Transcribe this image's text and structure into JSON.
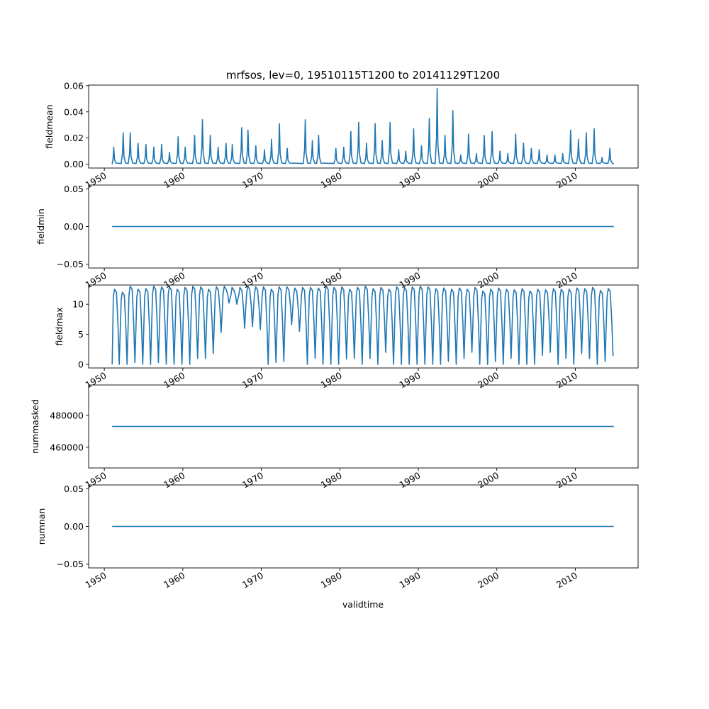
{
  "chart_data": {
    "title": "mrfsos, lev=0, 19510115T1200 to 20141129T1200",
    "xlabel": "validtime",
    "x_ticks": [
      "1950",
      "1960",
      "1970",
      "1980",
      "1990",
      "2000",
      "2010"
    ],
    "x_range": [
      1948.0,
      2018.0
    ],
    "series_color": "#1f77b4",
    "panels": [
      {
        "type": "line",
        "ylabel": "fieldmean",
        "ylim": [
          -0.003,
          0.0605
        ],
        "y_ticks": [
          "0.00",
          "0.02",
          "0.04",
          "0.06"
        ],
        "y_tick_values": [
          0.0,
          0.02,
          0.04,
          0.06
        ],
        "peaks": [
          {
            "x": 1951.2,
            "y": 0.013
          },
          {
            "x": 1952.4,
            "y": 0.024
          },
          {
            "x": 1953.3,
            "y": 0.024
          },
          {
            "x": 1954.3,
            "y": 0.016
          },
          {
            "x": 1955.3,
            "y": 0.015
          },
          {
            "x": 1956.3,
            "y": 0.013
          },
          {
            "x": 1957.3,
            "y": 0.015
          },
          {
            "x": 1958.3,
            "y": 0.009
          },
          {
            "x": 1959.4,
            "y": 0.021
          },
          {
            "x": 1960.3,
            "y": 0.013
          },
          {
            "x": 1961.5,
            "y": 0.022
          },
          {
            "x": 1962.5,
            "y": 0.034
          },
          {
            "x": 1963.5,
            "y": 0.022
          },
          {
            "x": 1964.5,
            "y": 0.013
          },
          {
            "x": 1965.5,
            "y": 0.016
          },
          {
            "x": 1966.3,
            "y": 0.015
          },
          {
            "x": 1967.5,
            "y": 0.028
          },
          {
            "x": 1968.3,
            "y": 0.026
          },
          {
            "x": 1969.3,
            "y": 0.014
          },
          {
            "x": 1970.4,
            "y": 0.011
          },
          {
            "x": 1971.3,
            "y": 0.019
          },
          {
            "x": 1972.3,
            "y": 0.031
          },
          {
            "x": 1973.3,
            "y": 0.012
          },
          {
            "x": 1975.6,
            "y": 0.034
          },
          {
            "x": 1976.5,
            "y": 0.018
          },
          {
            "x": 1977.3,
            "y": 0.022
          },
          {
            "x": 1979.5,
            "y": 0.012
          },
          {
            "x": 1980.5,
            "y": 0.013
          },
          {
            "x": 1981.4,
            "y": 0.025
          },
          {
            "x": 1982.4,
            "y": 0.032
          },
          {
            "x": 1983.4,
            "y": 0.016
          },
          {
            "x": 1984.5,
            "y": 0.031
          },
          {
            "x": 1985.4,
            "y": 0.018
          },
          {
            "x": 1986.4,
            "y": 0.032
          },
          {
            "x": 1987.5,
            "y": 0.011
          },
          {
            "x": 1988.4,
            "y": 0.01
          },
          {
            "x": 1989.4,
            "y": 0.027
          },
          {
            "x": 1990.4,
            "y": 0.014
          },
          {
            "x": 1991.4,
            "y": 0.035
          },
          {
            "x": 1992.4,
            "y": 0.058
          },
          {
            "x": 1993.4,
            "y": 0.022
          },
          {
            "x": 1994.4,
            "y": 0.041
          },
          {
            "x": 1995.4,
            "y": 0.007
          },
          {
            "x": 1996.4,
            "y": 0.023
          },
          {
            "x": 1997.4,
            "y": 0.008
          },
          {
            "x": 1998.4,
            "y": 0.022
          },
          {
            "x": 1999.4,
            "y": 0.025
          },
          {
            "x": 2000.4,
            "y": 0.01
          },
          {
            "x": 2001.4,
            "y": 0.008
          },
          {
            "x": 2002.4,
            "y": 0.023
          },
          {
            "x": 2003.4,
            "y": 0.016
          },
          {
            "x": 2004.4,
            "y": 0.012
          },
          {
            "x": 2005.4,
            "y": 0.011
          },
          {
            "x": 2006.4,
            "y": 0.007
          },
          {
            "x": 2007.4,
            "y": 0.007
          },
          {
            "x": 2008.4,
            "y": 0.008
          },
          {
            "x": 2009.4,
            "y": 0.026
          },
          {
            "x": 2010.4,
            "y": 0.019
          },
          {
            "x": 2011.4,
            "y": 0.024
          },
          {
            "x": 2012.4,
            "y": 0.027
          },
          {
            "x": 2013.4,
            "y": 0.005
          },
          {
            "x": 2014.4,
            "y": 0.012
          }
        ],
        "x_end": 2014.9
      },
      {
        "type": "line",
        "ylabel": "fieldmin",
        "ylim": [
          -0.055,
          0.055
        ],
        "y_ticks": [
          "−0.05",
          "0.00",
          "0.05"
        ],
        "y_tick_values": [
          -0.05,
          0.0,
          0.05
        ],
        "constant": 0.0,
        "x": [
          1951.0,
          2014.9
        ]
      },
      {
        "type": "line",
        "ylabel": "fieldmax",
        "ylim": [
          -0.6,
          13.2
        ],
        "y_ticks": [
          "0",
          "5",
          "10"
        ],
        "y_tick_values": [
          0,
          5,
          10
        ],
        "seasons": [
          {
            "min": 0.0,
            "max": 12.5
          },
          {
            "min": 0.0,
            "max": 12.0
          },
          {
            "min": 0.3,
            "max": 13.0
          },
          {
            "min": 0.0,
            "max": 12.5
          },
          {
            "min": 0.0,
            "max": 12.6
          },
          {
            "min": 0.3,
            "max": 13.0
          },
          {
            "min": 0.0,
            "max": 12.9
          },
          {
            "min": 0.0,
            "max": 12.9
          },
          {
            "min": 0.0,
            "max": 12.5
          },
          {
            "min": 0.0,
            "max": 12.8
          },
          {
            "min": 1.0,
            "max": 13.0
          },
          {
            "min": 1.0,
            "max": 12.9
          },
          {
            "min": 1.8,
            "max": 12.5
          },
          {
            "min": 5.3,
            "max": 12.9
          },
          {
            "min": 10.2,
            "max": 13.0
          },
          {
            "min": 10.0,
            "max": 12.8
          },
          {
            "min": 6.0,
            "max": 12.8
          },
          {
            "min": 6.3,
            "max": 13.0
          },
          {
            "min": 5.8,
            "max": 12.9
          },
          {
            "min": 0.0,
            "max": 12.9
          },
          {
            "min": 0.3,
            "max": 12.5
          },
          {
            "min": 0.5,
            "max": 12.9
          },
          {
            "min": 6.6,
            "max": 12.9
          },
          {
            "min": 5.5,
            "max": 12.7
          },
          {
            "min": 0.0,
            "max": 12.8
          },
          {
            "min": 1.0,
            "max": 12.8
          },
          {
            "min": 0.0,
            "max": 12.7
          },
          {
            "min": 0.0,
            "max": 13.0
          },
          {
            "min": 0.0,
            "max": 12.8
          },
          {
            "min": 0.9,
            "max": 12.9
          },
          {
            "min": 1.0,
            "max": 12.5
          },
          {
            "min": 0.0,
            "max": 12.8
          },
          {
            "min": 1.0,
            "max": 13.0
          },
          {
            "min": 0.0,
            "max": 12.6
          },
          {
            "min": 2.0,
            "max": 12.8
          },
          {
            "min": 0.0,
            "max": 12.5
          },
          {
            "min": 0.0,
            "max": 12.9
          },
          {
            "min": 0.0,
            "max": 12.8
          },
          {
            "min": 0.0,
            "max": 12.9
          },
          {
            "min": 0.0,
            "max": 13.0
          },
          {
            "min": 0.0,
            "max": 12.9
          },
          {
            "min": 0.0,
            "max": 12.6
          },
          {
            "min": 0.5,
            "max": 12.7
          },
          {
            "min": 0.0,
            "max": 12.5
          },
          {
            "min": 1.0,
            "max": 12.7
          },
          {
            "min": 2.0,
            "max": 12.5
          },
          {
            "min": 0.0,
            "max": 12.8
          },
          {
            "min": 0.0,
            "max": 12.2
          },
          {
            "min": 0.5,
            "max": 12.5
          },
          {
            "min": 0.0,
            "max": 12.7
          },
          {
            "min": 1.0,
            "max": 12.5
          },
          {
            "min": 0.0,
            "max": 12.4
          },
          {
            "min": 0.0,
            "max": 12.6
          },
          {
            "min": 0.0,
            "max": 12.2
          },
          {
            "min": 1.5,
            "max": 12.5
          },
          {
            "min": 2.0,
            "max": 12.4
          },
          {
            "min": 0.0,
            "max": 12.6
          },
          {
            "min": 1.0,
            "max": 12.5
          },
          {
            "min": 0.0,
            "max": 12.5
          },
          {
            "min": 1.8,
            "max": 12.7
          },
          {
            "min": 1.0,
            "max": 12.6
          },
          {
            "min": 0.0,
            "max": 12.8
          },
          {
            "min": 0.5,
            "max": 12.3
          },
          {
            "min": 1.5,
            "max": 12.6
          }
        ],
        "x_start": 1951.0,
        "x_end": 2014.9
      },
      {
        "type": "line",
        "ylabel": "nummasked",
        "ylim": [
          447000,
          499000
        ],
        "y_ticks": [
          "460000",
          "480000"
        ],
        "y_tick_values": [
          460000,
          480000
        ],
        "constant": 473000,
        "x": [
          1951.0,
          2014.9
        ]
      },
      {
        "type": "line",
        "ylabel": "numnan",
        "ylim": [
          -0.055,
          0.055
        ],
        "y_ticks": [
          "−0.05",
          "0.00",
          "0.05"
        ],
        "y_tick_values": [
          -0.05,
          0.0,
          0.05
        ],
        "constant": 0.0,
        "x": [
          1951.0,
          2014.9
        ]
      }
    ]
  }
}
